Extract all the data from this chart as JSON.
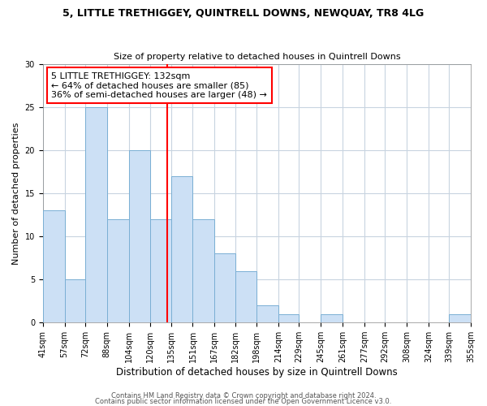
{
  "title1": "5, LITTLE TRETHIGGEY, QUINTRELL DOWNS, NEWQUAY, TR8 4LG",
  "title2": "Size of property relative to detached houses in Quintrell Downs",
  "xlabel": "Distribution of detached houses by size in Quintrell Downs",
  "ylabel": "Number of detached properties",
  "bins": [
    41,
    57,
    72,
    88,
    104,
    120,
    135,
    151,
    167,
    182,
    198,
    214,
    229,
    245,
    261,
    277,
    292,
    308,
    324,
    339,
    355
  ],
  "values": [
    13,
    5,
    25,
    12,
    20,
    12,
    17,
    12,
    8,
    6,
    2,
    1,
    0,
    1,
    0,
    0,
    0,
    0,
    0,
    1
  ],
  "bar_color": "#cce0f5",
  "bar_edge_color": "#7aafd4",
  "red_line_x": 132,
  "ylim": [
    0,
    30
  ],
  "yticks": [
    0,
    5,
    10,
    15,
    20,
    25,
    30
  ],
  "annotation_title": "5 LITTLE TRETHIGGEY: 132sqm",
  "annotation_line1": "← 64% of detached houses are smaller (85)",
  "annotation_line2": "36% of semi-detached houses are larger (48) →",
  "footer1": "Contains HM Land Registry data © Crown copyright and database right 2024.",
  "footer2": "Contains public sector information licensed under the Open Government Licence v3.0.",
  "background_color": "#ffffff",
  "plot_background": "#ffffff",
  "grid_color": "#c8d4e0",
  "title1_fontsize": 9,
  "title2_fontsize": 8,
  "ylabel_fontsize": 8,
  "xlabel_fontsize": 8.5,
  "tick_fontsize": 7,
  "annot_fontsize": 8,
  "footer_fontsize": 6
}
